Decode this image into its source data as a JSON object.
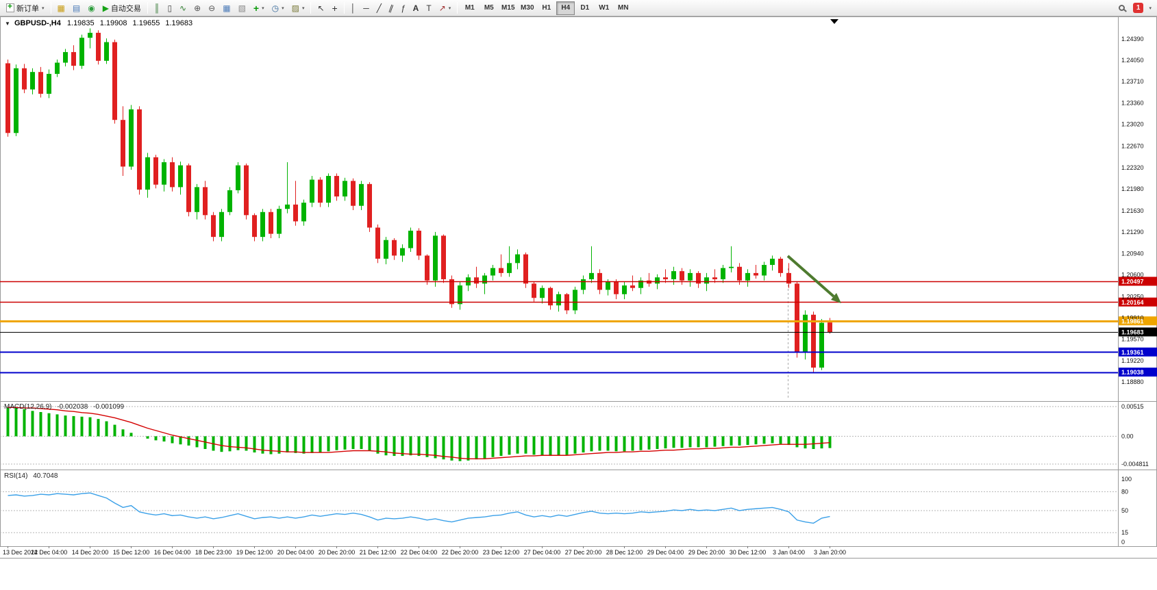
{
  "toolbar": {
    "new_order_label": "新订单",
    "autotrade_label": "自动交易",
    "timeframes": [
      "M1",
      "M5",
      "M15",
      "M30",
      "H1",
      "H4",
      "D1",
      "W1",
      "MN"
    ],
    "active_timeframe": "H4",
    "notification_count": "1"
  },
  "chart_header": {
    "symbol": "GBPUSD-,H4",
    "open": "1.19835",
    "high": "1.19908",
    "low": "1.19655",
    "close": "1.19683"
  },
  "indicators": {
    "macd": {
      "label": "MACD(12,26,9)",
      "value1": "-0.002038",
      "value2": "-0.001099",
      "scale": [
        "0.00515",
        "0.00",
        "-0.004811"
      ]
    },
    "rsi": {
      "label": "RSI(14)",
      "value": "40.7048",
      "scale": [
        "100",
        "80",
        "50",
        "15",
        "0"
      ],
      "levels": [
        80,
        50,
        15
      ]
    }
  },
  "price_axis": {
    "ticks": [
      "1.24390",
      "1.24050",
      "1.23710",
      "1.23360",
      "1.23020",
      "1.22670",
      "1.22320",
      "1.21980",
      "1.21630",
      "1.21290",
      "1.20940",
      "1.20600",
      "1.20250",
      "1.19910",
      "1.19570",
      "1.19220",
      "1.18880"
    ],
    "marked": [
      {
        "value": "1.20497",
        "color": "#cc0000",
        "width": 1.4
      },
      {
        "value": "1.20164",
        "color": "#cc0000",
        "width": 1.4
      },
      {
        "value": "1.19861",
        "color": "#efa500",
        "width": 3
      },
      {
        "value": "1.19683",
        "color": "#000000",
        "width": 1
      },
      {
        "value": "1.19361",
        "color": "#0000cc",
        "width": 2
      },
      {
        "value": "1.19038",
        "color": "#0000cc",
        "width": 2
      }
    ]
  },
  "time_axis": {
    "labels": [
      "13 Dec 2022",
      "14 Dec 04:00",
      "14 Dec 20:00",
      "15 Dec 12:00",
      "16 Dec 04:00",
      "18 Dec 23:00",
      "19 Dec 12:00",
      "20 Dec 04:00",
      "20 Dec 20:00",
      "21 Dec 12:00",
      "22 Dec 04:00",
      "22 Dec 20:00",
      "23 Dec 12:00",
      "27 Dec 04:00",
      "27 Dec 20:00",
      "28 Dec 12:00",
      "29 Dec 04:00",
      "29 Dec 20:00",
      "30 Dec 12:00",
      "3 Jan 04:00",
      "3 Jan 20:00"
    ]
  },
  "colors": {
    "bull": "#00b300",
    "bear": "#e02020",
    "macd": "#00b300",
    "signal": "#d40000",
    "rsi": "#3aa0e8",
    "arrow": "#4e7b2f"
  },
  "chart_data": {
    "type": "candlestick",
    "symbol": "GBPUSD-",
    "period": "H4",
    "levels": {
      "resistance": [
        "1.20497",
        "1.20164"
      ],
      "pivot": "1.19861",
      "current_bid": "1.19683",
      "support": [
        "1.19361",
        "1.19038"
      ]
    },
    "candles": [
      [
        1.24,
        1.2406,
        1.2282,
        1.2288
      ],
      [
        1.2288,
        1.2398,
        1.2283,
        1.2392
      ],
      [
        1.2392,
        1.2399,
        1.2352,
        1.2358
      ],
      [
        1.2358,
        1.2392,
        1.235,
        1.2386
      ],
      [
        1.2386,
        1.2394,
        1.2345,
        1.2351
      ],
      [
        1.2351,
        1.239,
        1.2344,
        1.2383
      ],
      [
        1.2383,
        1.2406,
        1.2378,
        1.2401
      ],
      [
        1.2401,
        1.2423,
        1.2395,
        1.2418
      ],
      [
        1.2418,
        1.2429,
        1.2389,
        1.2396
      ],
      [
        1.2396,
        1.2446,
        1.2391,
        1.2441
      ],
      [
        1.2441,
        1.2456,
        1.2424,
        1.2449
      ],
      [
        1.2449,
        1.2453,
        1.2398,
        1.2404
      ],
      [
        1.2404,
        1.244,
        1.2399,
        1.2434
      ],
      [
        1.2434,
        1.2438,
        1.2303,
        1.2309
      ],
      [
        1.2309,
        1.2331,
        1.2219,
        1.2234
      ],
      [
        1.2234,
        1.2333,
        1.2229,
        1.2326
      ],
      [
        1.2326,
        1.2331,
        1.2189,
        1.2197
      ],
      [
        1.2197,
        1.2256,
        1.2184,
        1.2249
      ],
      [
        1.2249,
        1.2253,
        1.2199,
        1.2205
      ],
      [
        1.2205,
        1.2246,
        1.2194,
        1.2241
      ],
      [
        1.2241,
        1.2249,
        1.2194,
        1.2201
      ],
      [
        1.2201,
        1.2242,
        1.2189,
        1.2236
      ],
      [
        1.2236,
        1.2239,
        1.2154,
        1.2161
      ],
      [
        1.2161,
        1.2206,
        1.2149,
        1.2201
      ],
      [
        1.2201,
        1.2211,
        1.2149,
        1.2156
      ],
      [
        1.2156,
        1.2161,
        1.2114,
        1.2121
      ],
      [
        1.2121,
        1.2166,
        1.2114,
        1.2161
      ],
      [
        1.2161,
        1.2201,
        1.2156,
        1.2196
      ],
      [
        1.2196,
        1.2241,
        1.2191,
        1.2236
      ],
      [
        1.2236,
        1.2239,
        1.2149,
        1.2156
      ],
      [
        1.2156,
        1.2159,
        1.2114,
        1.2121
      ],
      [
        1.2121,
        1.2166,
        1.2114,
        1.2161
      ],
      [
        1.2161,
        1.2166,
        1.2119,
        1.2126
      ],
      [
        1.2126,
        1.2171,
        1.2119,
        1.2166
      ],
      [
        1.2166,
        1.2241,
        1.2159,
        1.2173
      ],
      [
        1.2173,
        1.2211,
        1.2139,
        1.2146
      ],
      [
        1.2146,
        1.2181,
        1.2139,
        1.2176
      ],
      [
        1.2176,
        1.2219,
        1.2169,
        1.2213
      ],
      [
        1.2213,
        1.2217,
        1.2169,
        1.2176
      ],
      [
        1.2176,
        1.2223,
        1.2169,
        1.2219
      ],
      [
        1.2219,
        1.2223,
        1.2179,
        1.2186
      ],
      [
        1.2186,
        1.2216,
        1.2179,
        1.2211
      ],
      [
        1.2211,
        1.2215,
        1.2164,
        1.2171
      ],
      [
        1.2171,
        1.2211,
        1.2164,
        1.2206
      ],
      [
        1.2206,
        1.2209,
        1.2129,
        1.2136
      ],
      [
        1.2136,
        1.2141,
        1.2079,
        1.2086
      ],
      [
        1.2086,
        1.2121,
        1.2077,
        1.2116
      ],
      [
        1.2116,
        1.2119,
        1.2084,
        1.2091
      ],
      [
        1.2091,
        1.2109,
        1.2081,
        1.2103
      ],
      [
        1.2103,
        1.2136,
        1.2097,
        1.2131
      ],
      [
        1.2131,
        1.2135,
        1.2084,
        1.2091
      ],
      [
        1.2091,
        1.2093,
        1.2044,
        1.2051
      ],
      [
        1.2051,
        1.2129,
        1.2041,
        1.2123
      ],
      [
        1.2123,
        1.2125,
        1.2047,
        1.2053
      ],
      [
        1.2053,
        1.2059,
        1.2007,
        1.2013
      ],
      [
        1.2013,
        1.2049,
        1.2004,
        1.2043
      ],
      [
        1.2043,
        1.2061,
        1.2034,
        1.2056
      ],
      [
        1.2056,
        1.2073,
        1.2039,
        1.2046
      ],
      [
        1.2046,
        1.2063,
        1.2029,
        1.2059
      ],
      [
        1.2059,
        1.2076,
        1.2051,
        1.2071
      ],
      [
        1.2071,
        1.2093,
        1.2057,
        1.2063
      ],
      [
        1.2063,
        1.2106,
        1.2057,
        1.2079
      ],
      [
        1.2079,
        1.2101,
        1.2069,
        1.2093
      ],
      [
        1.2093,
        1.2096,
        1.2039,
        1.2046
      ],
      [
        1.2046,
        1.2049,
        1.2017,
        1.2023
      ],
      [
        1.2023,
        1.2043,
        1.2014,
        1.2039
      ],
      [
        1.2039,
        1.2041,
        1.2004,
        1.2011
      ],
      [
        1.2011,
        1.2033,
        1.2001,
        1.2029
      ],
      [
        1.2029,
        1.2031,
        1.1997,
        1.2003
      ],
      [
        1.2003,
        1.2041,
        1.1997,
        1.2036
      ],
      [
        1.2036,
        1.2059,
        1.2029,
        1.2053
      ],
      [
        1.2053,
        1.2106,
        1.2047,
        1.2063
      ],
      [
        1.2063,
        1.2069,
        1.2029,
        1.2036
      ],
      [
        1.2036,
        1.2053,
        1.2027,
        1.2049
      ],
      [
        1.2049,
        1.2053,
        1.2021,
        1.2029
      ],
      [
        1.2029,
        1.2049,
        1.2021,
        1.2043
      ],
      [
        1.2043,
        1.2059,
        1.2034,
        1.2039
      ],
      [
        1.2039,
        1.2056,
        1.2029,
        1.2051
      ],
      [
        1.2051,
        1.2063,
        1.2041,
        1.2046
      ],
      [
        1.2046,
        1.2061,
        1.2037,
        1.2056
      ],
      [
        1.2056,
        1.2069,
        1.2047,
        1.2053
      ],
      [
        1.2053,
        1.2073,
        1.2044,
        1.2066
      ],
      [
        1.2066,
        1.2071,
        1.2044,
        1.2051
      ],
      [
        1.2051,
        1.2069,
        1.2041,
        1.2063
      ],
      [
        1.2063,
        1.2066,
        1.2039,
        1.2046
      ],
      [
        1.2046,
        1.2063,
        1.2034,
        1.2056
      ],
      [
        1.2056,
        1.2069,
        1.2047,
        1.2053
      ],
      [
        1.2053,
        1.2076,
        1.2047,
        1.2071
      ],
      [
        1.2071,
        1.2106,
        1.2064,
        1.2073
      ],
      [
        1.2073,
        1.2079,
        1.2044,
        1.2051
      ],
      [
        1.2051,
        1.2069,
        1.2041,
        1.2063
      ],
      [
        1.2063,
        1.2076,
        1.2054,
        1.2059
      ],
      [
        1.2059,
        1.2081,
        1.2051,
        1.2076
      ],
      [
        1.2076,
        1.2091,
        1.2067,
        1.2086
      ],
      [
        1.2086,
        1.2089,
        1.2057,
        1.2063
      ],
      [
        1.2063,
        1.2079,
        1.2039,
        1.2046
      ],
      [
        1.2046,
        1.2049,
        1.1927,
        1.1936
      ],
      [
        1.1936,
        1.2003,
        1.1924,
        1.1996
      ],
      [
        1.1996,
        1.2001,
        1.1904,
        1.1911
      ],
      [
        1.1911,
        1.1989,
        1.1907,
        1.1983
      ],
      [
        1.19835,
        1.19908,
        1.19655,
        1.19683
      ]
    ],
    "macd_histogram": [
      0.005,
      0.0049,
      0.0047,
      0.0044,
      0.0042,
      0.004,
      0.0038,
      0.0036,
      0.0035,
      0.0034,
      0.0033,
      0.003,
      0.0026,
      0.002,
      0.0012,
      0.0006,
      0.0,
      -0.0004,
      -0.0007,
      -0.0009,
      -0.0012,
      -0.0014,
      -0.0016,
      -0.0019,
      -0.0022,
      -0.0025,
      -0.0027,
      -0.0026,
      -0.0024,
      -0.0025,
      -0.0028,
      -0.003,
      -0.0031,
      -0.003,
      -0.0028,
      -0.0029,
      -0.003,
      -0.0029,
      -0.0028,
      -0.0026,
      -0.0024,
      -0.0023,
      -0.0022,
      -0.0022,
      -0.0025,
      -0.003,
      -0.0033,
      -0.0034,
      -0.0034,
      -0.0033,
      -0.0034,
      -0.0036,
      -0.0038,
      -0.004,
      -0.0042,
      -0.0043,
      -0.0042,
      -0.004,
      -0.0038,
      -0.0036,
      -0.0034,
      -0.0032,
      -0.003,
      -0.003,
      -0.0032,
      -0.0033,
      -0.0034,
      -0.0033,
      -0.0032,
      -0.003,
      -0.0028,
      -0.0026,
      -0.0025,
      -0.0025,
      -0.0026,
      -0.0026,
      -0.0025,
      -0.0024,
      -0.0023,
      -0.0022,
      -0.0021,
      -0.002,
      -0.002,
      -0.0019,
      -0.0019,
      -0.0019,
      -0.0018,
      -0.0017,
      -0.0016,
      -0.0016,
      -0.0015,
      -0.0014,
      -0.0013,
      -0.0012,
      -0.0013,
      -0.0015,
      -0.0019,
      -0.0021,
      -0.0022,
      -0.0021,
      -0.002038
    ],
    "macd_signal": [
      0.005,
      0.005,
      0.0049,
      0.0049,
      0.0048,
      0.0047,
      0.0046,
      0.0044,
      0.0043,
      0.0041,
      0.004,
      0.0038,
      0.0035,
      0.0032,
      0.0028,
      0.0024,
      0.0019,
      0.0014,
      0.001,
      0.0006,
      0.0002,
      -0.0001,
      -0.0004,
      -0.0007,
      -0.001,
      -0.0013,
      -0.0016,
      -0.0018,
      -0.0019,
      -0.002,
      -0.0022,
      -0.0024,
      -0.0025,
      -0.0026,
      -0.0027,
      -0.0027,
      -0.0028,
      -0.0028,
      -0.0028,
      -0.0028,
      -0.0027,
      -0.0026,
      -0.0025,
      -0.0025,
      -0.0025,
      -0.0026,
      -0.0027,
      -0.0029,
      -0.003,
      -0.0031,
      -0.0031,
      -0.0032,
      -0.0033,
      -0.0035,
      -0.0036,
      -0.0038,
      -0.0039,
      -0.0039,
      -0.0039,
      -0.0038,
      -0.0037,
      -0.0036,
      -0.0035,
      -0.0034,
      -0.0034,
      -0.0033,
      -0.0033,
      -0.0033,
      -0.0033,
      -0.0032,
      -0.0031,
      -0.003,
      -0.0029,
      -0.0028,
      -0.0028,
      -0.0027,
      -0.0027,
      -0.0026,
      -0.0026,
      -0.0025,
      -0.0024,
      -0.0024,
      -0.0023,
      -0.0022,
      -0.0022,
      -0.0021,
      -0.0021,
      -0.002,
      -0.0019,
      -0.0019,
      -0.0018,
      -0.0017,
      -0.0016,
      -0.0015,
      -0.0014,
      -0.0014,
      -0.0014,
      -0.0014,
      -0.0013,
      -0.0012,
      -0.001099
    ],
    "rsi": [
      74,
      75,
      73,
      74,
      76,
      75,
      77,
      76,
      75,
      77,
      78,
      74,
      70,
      62,
      55,
      58,
      48,
      45,
      43,
      45,
      42,
      43,
      40,
      38,
      40,
      37,
      39,
      42,
      45,
      41,
      37,
      39,
      40,
      38,
      40,
      38,
      40,
      43,
      41,
      43,
      45,
      44,
      46,
      44,
      40,
      35,
      38,
      37,
      38,
      40,
      38,
      35,
      37,
      34,
      32,
      35,
      38,
      39,
      40,
      42,
      43,
      46,
      48,
      43,
      40,
      42,
      40,
      43,
      41,
      44,
      47,
      49,
      46,
      45,
      46,
      45,
      46,
      48,
      47,
      48,
      49,
      51,
      50,
      52,
      50,
      51,
      50,
      52,
      54,
      50,
      52,
      53,
      54,
      55,
      52,
      48,
      35,
      32,
      30,
      38,
      40.7
    ]
  }
}
